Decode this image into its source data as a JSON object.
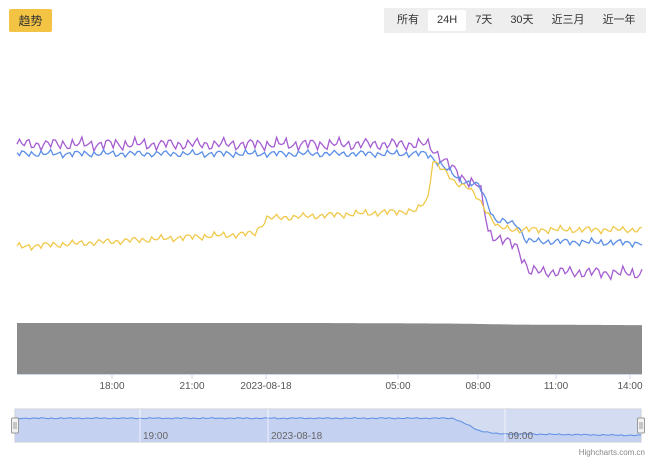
{
  "header": {
    "trend_label": "趋势",
    "ranges": [
      "所有",
      "24H",
      "7天",
      "30天",
      "近三月",
      "近一年"
    ],
    "active_range": "24H"
  },
  "colors": {
    "purple": "#a55dd1",
    "blue": "#5b8ee6",
    "yellow": "#f0c94b",
    "volume": "#8c8c8c",
    "navigator_fill": "#ccd6f0",
    "accent": "#f3c443"
  },
  "chart_data": {
    "type": "line",
    "x_ticks": [
      "18:00",
      "21:00",
      "2023-08-18",
      "05:00",
      "08:00",
      "11:00",
      "14:00"
    ],
    "series": [
      {
        "color": "#a55dd1",
        "level_points": [
          [
            0,
            0.82
          ],
          [
            0.655,
            0.82
          ],
          [
            0.66,
            0.81
          ],
          [
            0.71,
            0.65
          ],
          [
            0.74,
            0.6
          ],
          [
            0.755,
            0.35
          ],
          [
            0.8,
            0.28
          ],
          [
            0.82,
            0.15
          ],
          [
            1,
            0.14
          ]
        ],
        "noise": 0.035
      },
      {
        "color": "#5b8ee6",
        "level_points": [
          [
            0,
            0.77
          ],
          [
            0.655,
            0.77
          ],
          [
            0.66,
            0.76
          ],
          [
            0.71,
            0.63
          ],
          [
            0.74,
            0.6
          ],
          [
            0.765,
            0.42
          ],
          [
            0.8,
            0.4
          ],
          [
            0.815,
            0.31
          ],
          [
            1,
            0.3
          ]
        ],
        "noise": 0.02
      },
      {
        "color": "#f0c94b",
        "level_points": [
          [
            0,
            0.28
          ],
          [
            0.38,
            0.35
          ],
          [
            0.4,
            0.43
          ],
          [
            0.64,
            0.47
          ],
          [
            0.658,
            0.54
          ],
          [
            0.665,
            0.74
          ],
          [
            0.7,
            0.62
          ],
          [
            0.72,
            0.6
          ],
          [
            0.745,
            0.5
          ],
          [
            0.77,
            0.38
          ],
          [
            0.8,
            0.37
          ],
          [
            1,
            0.37
          ]
        ],
        "noise": 0.02
      }
    ],
    "volume_series": {
      "color": "#8c8c8c",
      "level_points": [
        [
          0,
          0.98
        ],
        [
          0.5,
          0.98
        ],
        [
          0.7,
          0.97
        ],
        [
          0.8,
          0.95
        ],
        [
          1,
          0.94
        ]
      ]
    },
    "navigator": {
      "labels": [
        "19:00",
        "2023-08-18",
        "09:00"
      ],
      "series_points": [
        [
          0,
          0.72
        ],
        [
          0.7,
          0.72
        ],
        [
          0.72,
          0.55
        ],
        [
          0.74,
          0.35
        ],
        [
          0.77,
          0.25
        ],
        [
          1,
          0.2
        ]
      ]
    },
    "credit": "Highcharts.com.cn"
  }
}
